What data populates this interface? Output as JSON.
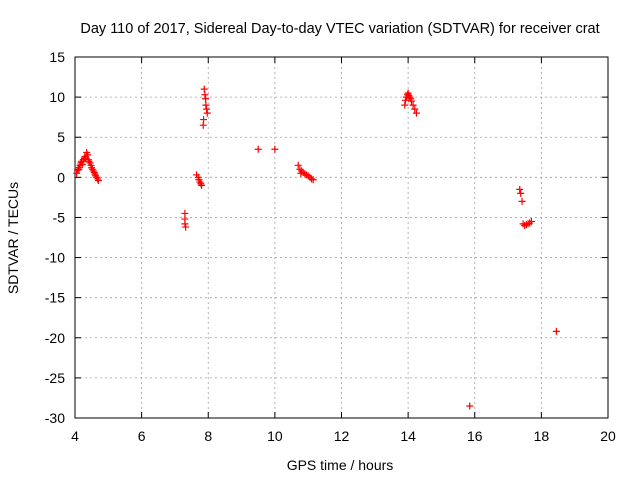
{
  "chart_data": {
    "type": "scatter",
    "title": "Day 110 of 2017, Sidereal Day-to-day VTEC variation (SDTVAR) for receiver crat",
    "xlabel": "GPS time / hours",
    "ylabel": "SDTVAR / TECUs",
    "xlim": [
      4,
      20
    ],
    "ylim": [
      -30,
      15
    ],
    "xticks": [
      4,
      6,
      8,
      10,
      12,
      14,
      16,
      18,
      20
    ],
    "yticks": [
      -30,
      -25,
      -20,
      -15,
      -10,
      -5,
      0,
      5,
      10,
      15
    ],
    "grid": true,
    "marker": "+",
    "color": "#ff0000",
    "series": [
      {
        "name": "SDTVAR",
        "points": [
          [
            4.05,
            0.5
          ],
          [
            4.08,
            0.9
          ],
          [
            4.1,
            1.2
          ],
          [
            4.12,
            1.0
          ],
          [
            4.15,
            1.5
          ],
          [
            4.18,
            1.8
          ],
          [
            4.2,
            2.0
          ],
          [
            4.22,
            1.6
          ],
          [
            4.25,
            2.2
          ],
          [
            4.28,
            2.4
          ],
          [
            4.3,
            2.6
          ],
          [
            4.32,
            2.3
          ],
          [
            4.35,
            3.1
          ],
          [
            4.38,
            2.8
          ],
          [
            4.4,
            2.2
          ],
          [
            4.42,
            2.0
          ],
          [
            4.45,
            1.8
          ],
          [
            4.48,
            1.5
          ],
          [
            4.5,
            1.2
          ],
          [
            4.52,
            1.0
          ],
          [
            4.55,
            0.8
          ],
          [
            4.58,
            0.6
          ],
          [
            4.6,
            0.4
          ],
          [
            4.62,
            0.2
          ],
          [
            4.65,
            0.0
          ],
          [
            4.68,
            -0.2
          ],
          [
            4.7,
            -0.4
          ],
          [
            7.3,
            -4.5
          ],
          [
            7.3,
            -5.2
          ],
          [
            7.3,
            -5.8
          ],
          [
            7.32,
            -6.2
          ],
          [
            7.65,
            0.3
          ],
          [
            7.7,
            0.0
          ],
          [
            7.72,
            -0.3
          ],
          [
            7.75,
            -0.6
          ],
          [
            7.78,
            -0.8
          ],
          [
            7.8,
            -1.0
          ],
          [
            7.85,
            6.5
          ],
          [
            7.86,
            7.2
          ],
          [
            7.88,
            11.0
          ],
          [
            7.9,
            10.3
          ],
          [
            7.92,
            9.8
          ],
          [
            7.93,
            9.0
          ],
          [
            7.95,
            8.5
          ],
          [
            7.97,
            8.0
          ],
          [
            9.5,
            3.5
          ],
          [
            10.0,
            3.5
          ],
          [
            10.7,
            1.5
          ],
          [
            10.75,
            1.0
          ],
          [
            10.78,
            0.5
          ],
          [
            10.8,
            0.8
          ],
          [
            10.85,
            0.6
          ],
          [
            10.9,
            0.4
          ],
          [
            10.95,
            0.3
          ],
          [
            11.0,
            0.2
          ],
          [
            11.05,
            0.0
          ],
          [
            11.1,
            -0.2
          ],
          [
            11.15,
            -0.3
          ],
          [
            13.9,
            9.0
          ],
          [
            13.92,
            9.6
          ],
          [
            13.95,
            10.0
          ],
          [
            13.98,
            10.3
          ],
          [
            14.0,
            10.5
          ],
          [
            14.02,
            10.2
          ],
          [
            14.05,
            10.0
          ],
          [
            14.08,
            9.8
          ],
          [
            14.1,
            9.5
          ],
          [
            14.15,
            9.0
          ],
          [
            14.2,
            8.5
          ],
          [
            14.25,
            8.0
          ],
          [
            15.85,
            -28.5
          ],
          [
            17.35,
            -1.5
          ],
          [
            17.38,
            -2.0
          ],
          [
            17.42,
            -3.0
          ],
          [
            17.45,
            -5.8
          ],
          [
            17.5,
            -6.0
          ],
          [
            17.55,
            -5.9
          ],
          [
            17.6,
            -5.8
          ],
          [
            17.65,
            -5.7
          ],
          [
            17.7,
            -5.5
          ],
          [
            18.45,
            -19.2
          ]
        ]
      }
    ]
  }
}
